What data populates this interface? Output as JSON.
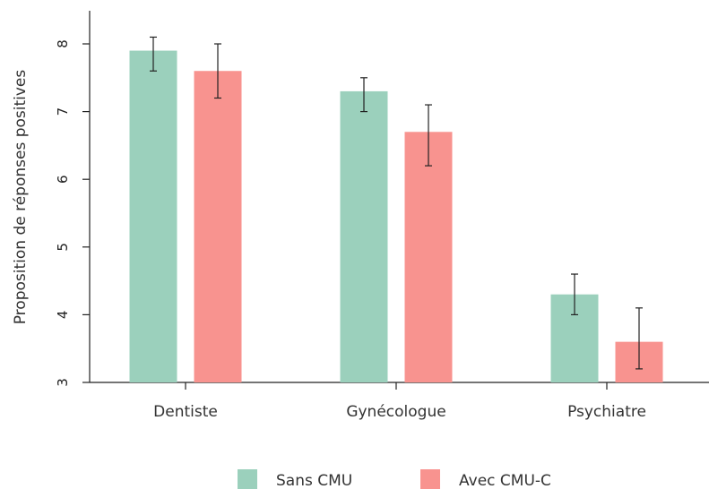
{
  "chart_data": {
    "type": "bar",
    "title": "",
    "xlabel": "",
    "ylabel": "Proposition de réponses positives",
    "ylim": [
      3,
      8.5
    ],
    "yticks": [
      "3",
      "4",
      "5",
      "6",
      "7",
      "8"
    ],
    "categories": [
      "Dentiste",
      "Gynécologue",
      "Psychiatre"
    ],
    "series": [
      {
        "name": "Sans CMU",
        "color": "#9bd0bc",
        "values": [
          7.9,
          7.3,
          4.3
        ],
        "error_low": [
          7.6,
          7.0,
          4.0
        ],
        "error_high": [
          8.1,
          7.5,
          4.6
        ]
      },
      {
        "name": "Avec CMU-C",
        "color": "#f8938f",
        "values": [
          7.6,
          6.7,
          3.6
        ],
        "error_low": [
          7.2,
          6.2,
          3.2
        ],
        "error_high": [
          8.0,
          7.1,
          4.1
        ]
      }
    ],
    "legend": {
      "position": "bottom"
    },
    "grid": false
  }
}
